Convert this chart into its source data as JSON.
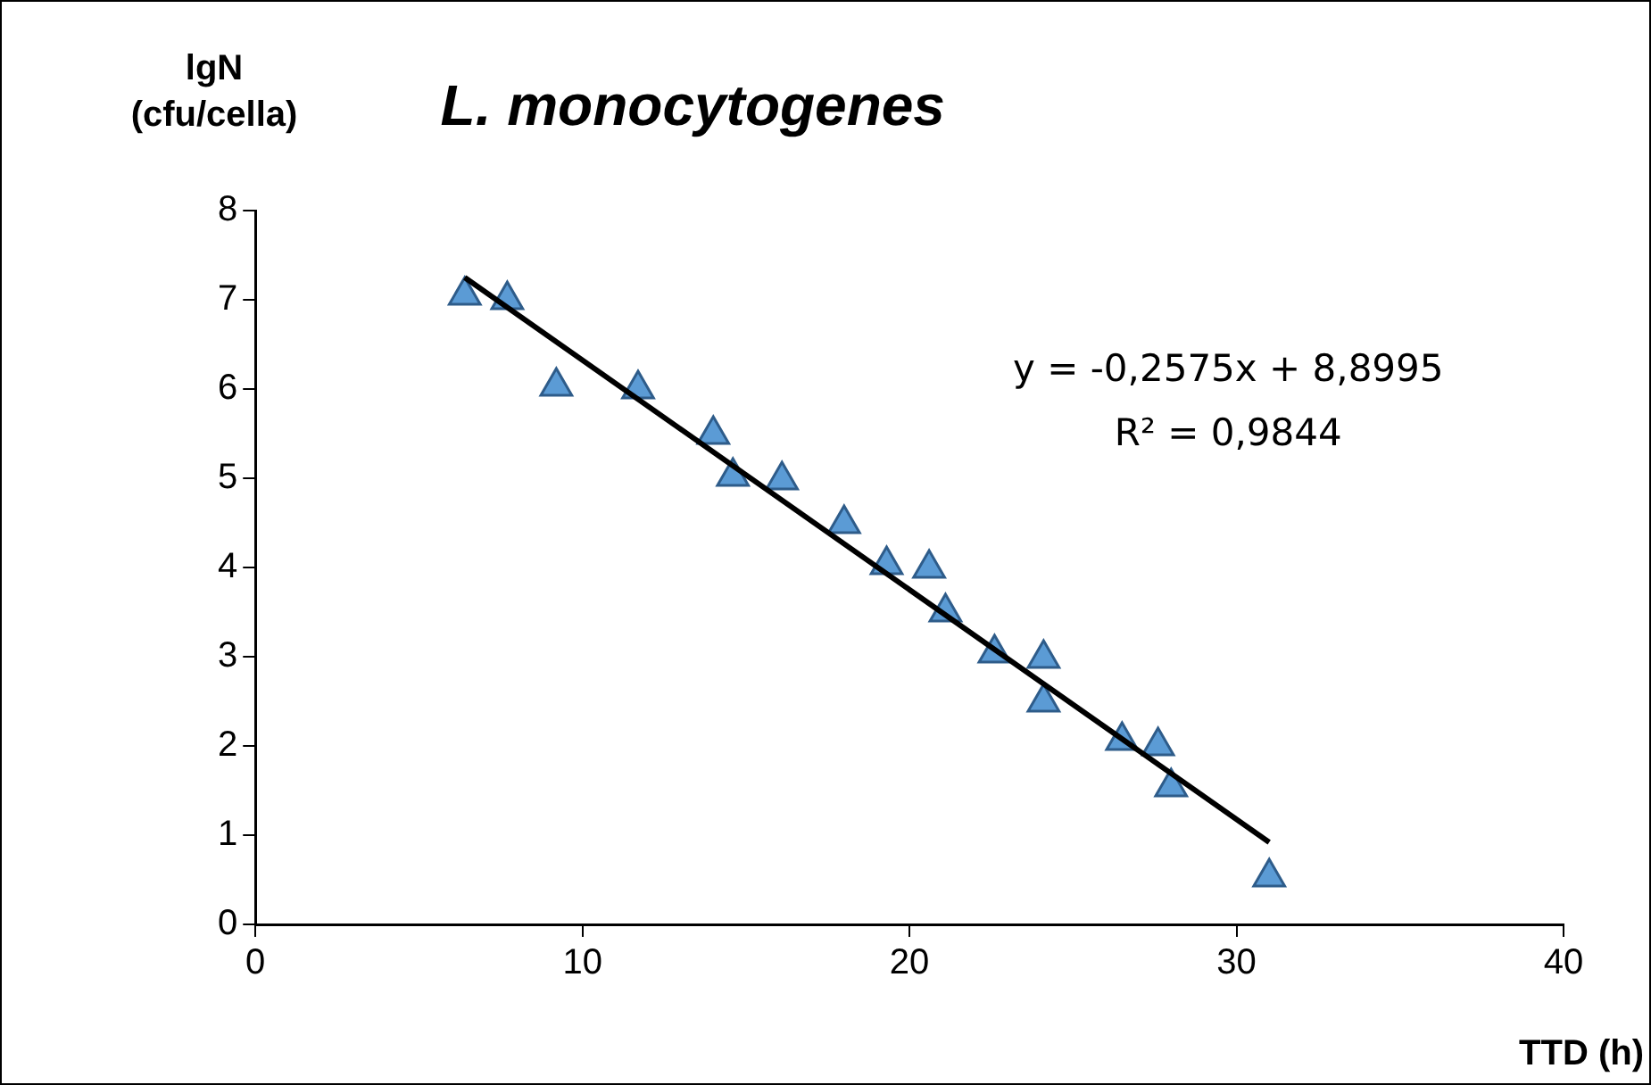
{
  "chart_data": {
    "type": "scatter",
    "title": "L. monocytogenes",
    "xlabel": "TTD (h)",
    "ylabel": "lgN\n(cfu/cella)",
    "xlim": [
      0,
      40
    ],
    "xticks": [
      0,
      10,
      20,
      30,
      40
    ],
    "ylim": [
      0,
      8
    ],
    "yticks": [
      0,
      1,
      2,
      3,
      4,
      5,
      6,
      7,
      8
    ],
    "grid": false,
    "marker": "triangle",
    "series": [
      {
        "color": "#5b9bd5",
        "x": [
          6.4,
          7.7,
          9.2,
          11.7,
          14.0,
          14.6,
          16.1,
          18.0,
          19.3,
          20.6,
          21.1,
          22.6,
          24.1,
          24.1,
          26.5,
          27.6,
          28.0,
          31.0
        ],
        "values": [
          7.05,
          7.0,
          6.03,
          6.0,
          5.49,
          5.02,
          4.98,
          4.49,
          4.03,
          3.99,
          3.5,
          3.04,
          2.98,
          2.49,
          2.06,
          2.0,
          1.54,
          0.53
        ]
      },
      {
        "type": "line",
        "color": "#000000",
        "line_style": "solid",
        "marker": "none",
        "x": [
          6.4,
          31.0
        ],
        "values": [
          7.25,
          0.92
        ]
      }
    ],
    "annotations": [
      "y = -0,2575x + 8,8995",
      "R² = 0,9844"
    ]
  }
}
